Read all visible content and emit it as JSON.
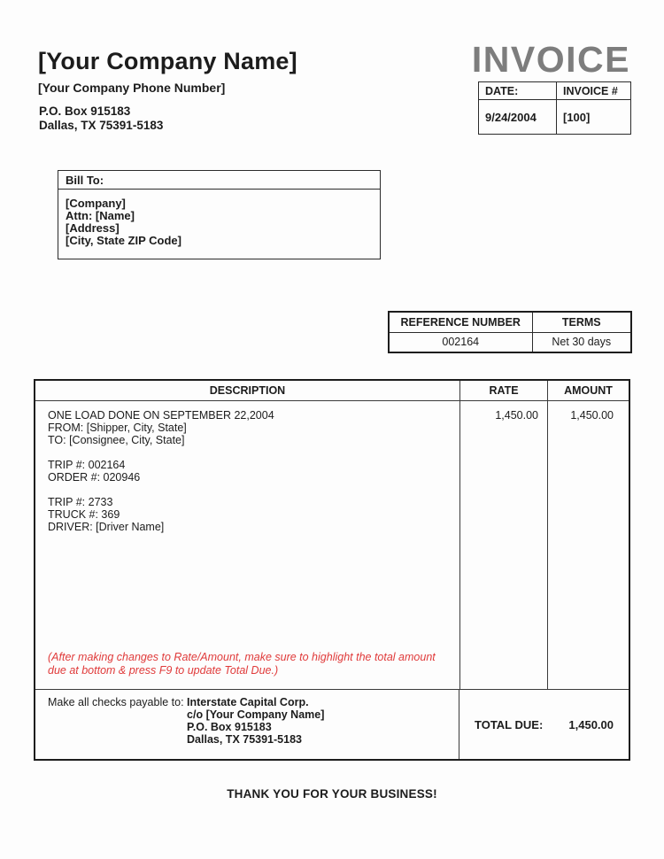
{
  "header": {
    "company_name": "[Your Company Name]",
    "company_phone": "[Your Company Phone Number]",
    "address_line1": "P.O. Box 915183",
    "address_line2": "Dallas, TX 75391-5183",
    "invoice_title": "INVOICE",
    "invoice_title_color": "#7d7d7d"
  },
  "invoice_meta": {
    "date_label": "DATE:",
    "invoice_no_label": "INVOICE #",
    "date_value": "9/24/2004",
    "invoice_no_value": "[100]"
  },
  "bill_to": {
    "label": "Bill To:",
    "lines": [
      "[Company]",
      "Attn: [Name]",
      "[Address]",
      "[City, State  ZIP Code]"
    ]
  },
  "reference": {
    "number_header": "REFERENCE NUMBER",
    "terms_header": "TERMS",
    "number_value": "002164",
    "terms_value": "Net 30 days"
  },
  "items_table": {
    "headers": {
      "description": "DESCRIPTION",
      "rate": "RATE",
      "amount": "AMOUNT"
    },
    "item": {
      "description_lines": [
        "ONE LOAD DONE ON SEPTEMBER 22,2004",
        "FROM: [Shipper, City, State]",
        "TO: [Consignee, City, State]",
        "",
        "TRIP #: 002164",
        "ORDER #: 020946",
        "",
        "TRIP #: 2733",
        "TRUCK #: 369",
        "DRIVER: [Driver Name]"
      ],
      "rate": "1,450.00",
      "amount": "1,450.00"
    },
    "note": {
      "text": "(After making changes to Rate/Amount, make sure to highlight the total amount due at bottom & press F9 to update Total Due.)",
      "color": "#e03a3a"
    }
  },
  "footer": {
    "payable_label": "Make all checks payable to: ",
    "payable_lines": [
      "Interstate Capital Corp.",
      "c/o [Your Company Name]",
      "P.O. Box 915183",
      "Dallas, TX 75391-5183"
    ],
    "total_due_label": "TOTAL DUE:",
    "total_due_value": "1,450.00",
    "thank_you": "THANK YOU FOR YOUR BUSINESS!"
  }
}
